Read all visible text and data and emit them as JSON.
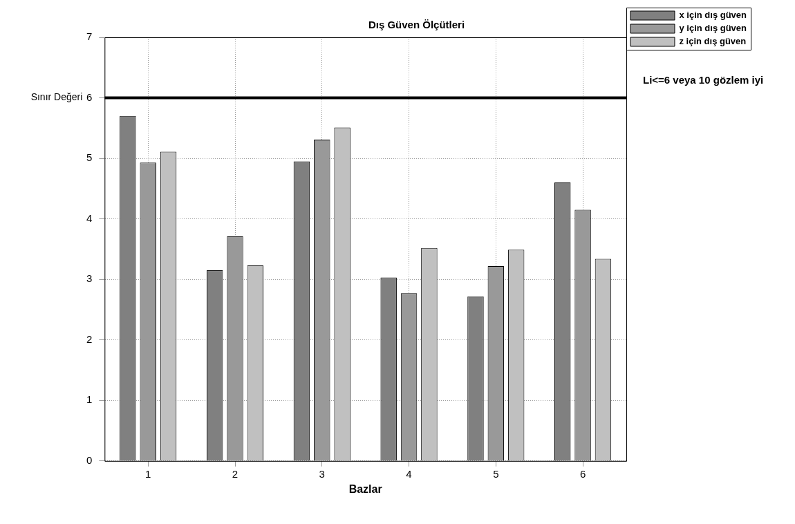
{
  "chart_data": {
    "type": "bar",
    "title": "Dış Güven Ölçütleri",
    "xlabel": "Bazlar",
    "categories": [
      "1",
      "2",
      "3",
      "4",
      "5",
      "6"
    ],
    "series": [
      {
        "name": "x için dış güven",
        "color": "#808080",
        "values": [
          5.7,
          3.15,
          4.95,
          3.03,
          2.72,
          4.6
        ]
      },
      {
        "name": "y için dış güven",
        "color": "#999999",
        "values": [
          4.93,
          3.71,
          5.31,
          2.77,
          3.22,
          4.15
        ]
      },
      {
        "name": "z için dış güven",
        "color": "#c0c0c0",
        "values": [
          5.11,
          3.23,
          5.51,
          3.52,
          3.49,
          3.34
        ]
      }
    ],
    "ylim": [
      0,
      7
    ],
    "yticks": [
      0,
      1,
      2,
      3,
      4,
      5,
      6,
      7
    ],
    "grid": true,
    "legend": "top right",
    "ref_lines": [
      {
        "axis": "y",
        "value": 6,
        "label": "Sınır Değeri",
        "color": "#000000"
      }
    ],
    "annotations": [
      "Li<=6 veya 10 gözlem iyi"
    ]
  }
}
